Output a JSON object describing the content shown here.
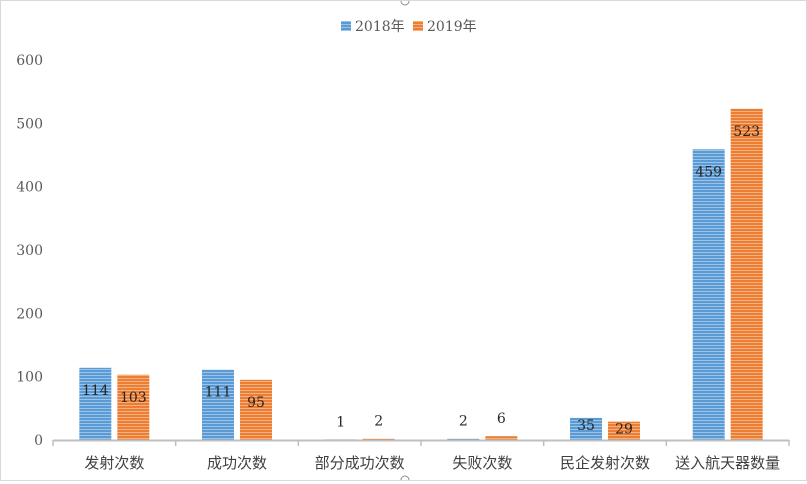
{
  "chart_data": {
    "type": "bar",
    "title": "",
    "xlabel": "",
    "ylabel": "",
    "ylim": [
      0,
      600
    ],
    "yticks": [
      0,
      100,
      200,
      300,
      400,
      500,
      600
    ],
    "grid": false,
    "legend_position": "top-center",
    "categories": [
      "发射次数",
      "成功次数",
      "部分成功次数",
      "失败次数",
      "民企发射次数",
      "送入航天器数量"
    ],
    "series": [
      {
        "name": "2018年",
        "color": "#5b9bd5",
        "values": [
          114,
          111,
          1,
          2,
          35,
          459
        ]
      },
      {
        "name": "2019年",
        "color": "#ed7d31",
        "values": [
          103,
          95,
          2,
          6,
          29,
          523
        ]
      }
    ]
  }
}
